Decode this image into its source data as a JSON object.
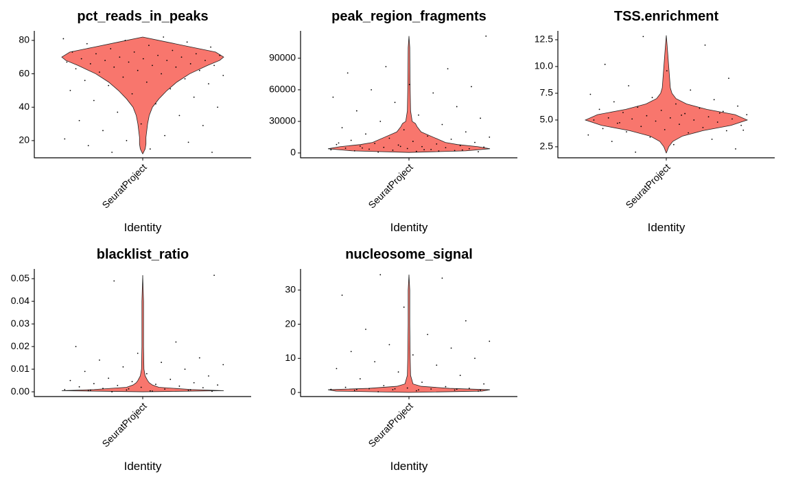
{
  "chart_data": [
    {
      "type": "violin",
      "title": "pct_reads_in_peaks",
      "x_label": "Identity",
      "categories": [
        "SeuratProject"
      ],
      "color": "#f8766d",
      "ylim": [
        9.7,
        85.7
      ],
      "yticks": [
        20,
        40,
        60,
        80
      ],
      "violin": {
        "y": [
          12,
          15,
          18,
          22,
          26,
          30,
          35,
          40,
          45,
          50,
          55,
          60,
          65,
          68,
          70,
          73,
          76,
          79,
          82
        ],
        "width": [
          0,
          0.03,
          0.04,
          0.04,
          0.05,
          0.06,
          0.08,
          0.12,
          0.2,
          0.3,
          0.42,
          0.58,
          0.8,
          0.95,
          1,
          0.9,
          0.6,
          0.3,
          0
        ]
      },
      "points": [
        13,
        13,
        15,
        17,
        19,
        20,
        21,
        23,
        26,
        29,
        30,
        32,
        35,
        37,
        40,
        42,
        44,
        46,
        48,
        50,
        51,
        53,
        54,
        55,
        56,
        57,
        58,
        59,
        60,
        61,
        62,
        62,
        63,
        64,
        64,
        65,
        65,
        66,
        66,
        67,
        67,
        68,
        68,
        68,
        69,
        69,
        70,
        70,
        71,
        71,
        72,
        72,
        73,
        73,
        74,
        75,
        76,
        77,
        78,
        79,
        80,
        81,
        82
      ]
    },
    {
      "type": "violin",
      "title": "peak_region_fragments",
      "x_label": "Identity",
      "categories": [
        "SeuratProject"
      ],
      "color": "#f8766d",
      "ylim": [
        -4600,
        116000
      ],
      "yticks": [
        0,
        30000,
        60000,
        90000
      ],
      "violin": {
        "y": [
          500,
          2000,
          4000,
          6000,
          8000,
          10000,
          15000,
          20000,
          25000,
          28000,
          30000,
          40000,
          60000,
          80000,
          100000,
          111000
        ],
        "width": [
          0,
          0.7,
          1,
          0.85,
          0.6,
          0.45,
          0.3,
          0.15,
          0.1,
          0.08,
          0.04,
          0.02,
          0.015,
          0.012,
          0.01,
          0
        ]
      },
      "points": [
        800,
        1200,
        1500,
        2000,
        2300,
        2600,
        3000,
        3300,
        3600,
        4000,
        4200,
        4500,
        5000,
        5300,
        5600,
        6000,
        6500,
        7000,
        7500,
        8000,
        8500,
        9000,
        10000,
        11000,
        12000,
        13000,
        14000,
        15000,
        16000,
        18000,
        20000,
        22000,
        24000,
        27000,
        30000,
        33000,
        36000,
        40000,
        44000,
        48000,
        53000,
        57000,
        60000,
        63000,
        65000,
        76000,
        80000,
        82000,
        111000,
        3100,
        4700,
        2800,
        6200,
        9500,
        1800
      ]
    },
    {
      "type": "violin",
      "title": "TSS.enrichment",
      "x_label": "Identity",
      "categories": [
        "SeuratProject"
      ],
      "color": "#f8766d",
      "ylim": [
        1.47,
        13.33
      ],
      "yticks": [
        2.5,
        {
          "value": 5,
          "label": "5.0"
        },
        7.5,
        {
          "value": 10,
          "label": "10.0"
        },
        12.5
      ],
      "violin": {
        "y": [
          1.9,
          2.5,
          3,
          3.5,
          4,
          4.5,
          5,
          5.5,
          6,
          6.5,
          7,
          7.5,
          8,
          9,
          10,
          11,
          12,
          12.9
        ],
        "width": [
          0,
          0.03,
          0.08,
          0.2,
          0.45,
          0.8,
          1,
          0.85,
          0.5,
          0.25,
          0.12,
          0.07,
          0.05,
          0.04,
          0.03,
          0.02,
          0.01,
          0
        ]
      },
      "points": [
        2,
        2.3,
        2.7,
        3,
        3.2,
        3.4,
        3.6,
        3.8,
        3.9,
        4,
        4.1,
        4.2,
        4.3,
        4.4,
        4.5,
        4.6,
        4.7,
        4.8,
        4.9,
        5,
        5,
        5.1,
        5.1,
        5.2,
        5.2,
        5.3,
        5.4,
        5.5,
        5.6,
        5.7,
        5.8,
        5.9,
        6,
        6.1,
        6.2,
        6.3,
        6.5,
        6.7,
        6.9,
        7.1,
        7.4,
        7.8,
        8.2,
        8.9,
        9.6,
        10.2,
        12,
        12.8,
        4.05,
        5.45,
        4.75,
        5.65
      ]
    },
    {
      "type": "violin",
      "title": "blacklist_ratio",
      "x_label": "Identity",
      "categories": [
        "SeuratProject"
      ],
      "color": "#f8766d",
      "ylim": [
        -0.0021,
        0.0543
      ],
      "yticks": [
        {
          "value": 0,
          "label": "0.00"
        },
        0.01,
        0.02,
        0.03,
        0.04,
        0.05
      ],
      "violin": {
        "y": [
          0,
          0.0005,
          0.001,
          0.002,
          0.003,
          0.004,
          0.005,
          0.007,
          0.01,
          0.02,
          0.03,
          0.04,
          0.0515
        ],
        "width": [
          0,
          1,
          0.6,
          0.2,
          0.12,
          0.08,
          0.06,
          0.03,
          0.015,
          0.01,
          0.01,
          0.01,
          0
        ]
      },
      "points": [
        0,
        0.0002,
        0.0004,
        0.0005,
        0.0006,
        0.0008,
        0.001,
        0.0012,
        0.0015,
        0.0018,
        0.002,
        0.0022,
        0.0025,
        0.0028,
        0.003,
        0.0033,
        0.0036,
        0.004,
        0.0045,
        0.005,
        0.0055,
        0.006,
        0.007,
        0.008,
        0.009,
        0.01,
        0.011,
        0.012,
        0.013,
        0.014,
        0.015,
        0.017,
        0.02,
        0.022,
        0.049,
        0.0515,
        0.0003,
        0.0007,
        0.0009,
        0.0013
      ]
    },
    {
      "type": "violin",
      "title": "nucleosome_signal",
      "x_label": "Identity",
      "categories": [
        "SeuratProject"
      ],
      "color": "#f8766d",
      "ylim": [
        -1.2,
        36.2
      ],
      "yticks": [
        0,
        10,
        20,
        30
      ],
      "violin": {
        "y": [
          0,
          0.4,
          0.8,
          1.2,
          1.8,
          2.5,
          5,
          10,
          20,
          30,
          34.5
        ],
        "width": [
          0,
          0.9,
          1,
          0.5,
          0.15,
          0.05,
          0.02,
          0.015,
          0.01,
          0.01,
          0
        ]
      },
      "points": [
        0.2,
        0.4,
        0.5,
        0.6,
        0.7,
        0.8,
        0.9,
        1,
        1.1,
        1.2,
        1.3,
        1.5,
        1.7,
        2,
        2.5,
        3,
        4,
        5,
        6,
        7,
        8,
        9,
        10,
        11,
        12,
        13,
        14,
        15,
        17,
        18.5,
        21,
        25,
        28.5,
        33.5,
        34.5,
        0.65,
        0.75,
        0.85,
        0.95,
        1.05
      ]
    }
  ]
}
